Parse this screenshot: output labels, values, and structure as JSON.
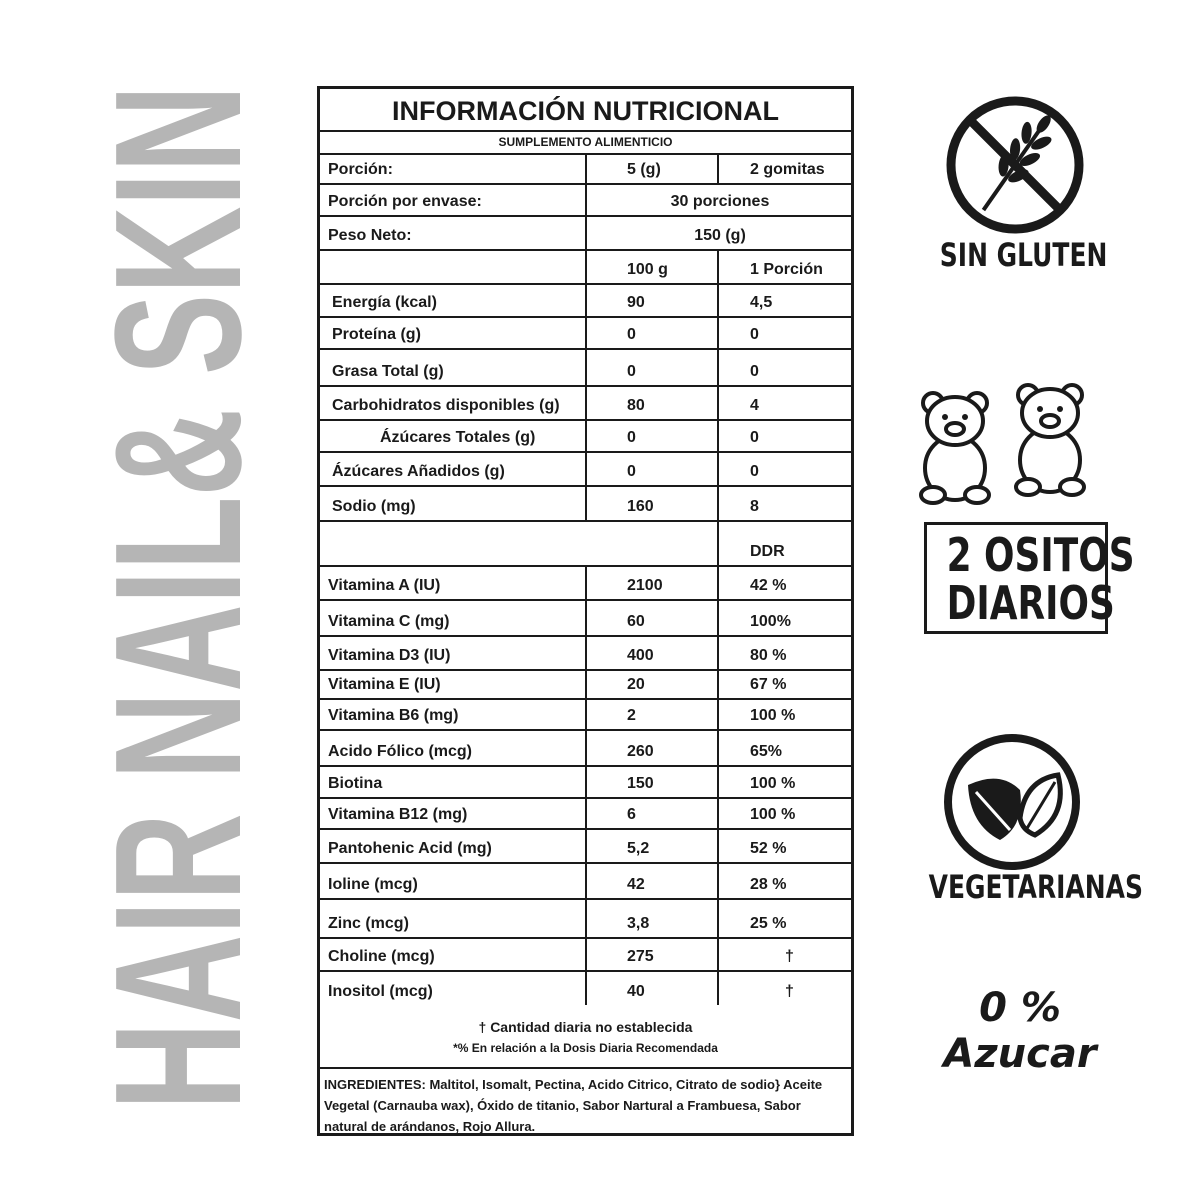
{
  "side_title": "HAIR NAIL& SKIN",
  "table": {
    "title": "INFORMACIÓN NUTRICIONAL",
    "subtitle": "SUMPLEMENTO ALIMENTICIO",
    "rows": [
      {
        "label": "Porción:",
        "v1": "5 (g)",
        "v2": "2 gomitas"
      },
      {
        "label": "Porción por envase:",
        "v1": "30 porciones",
        "v2": ""
      },
      {
        "label": "Peso Neto:",
        "v1": "150 (g)",
        "v2": ""
      },
      {
        "label": "",
        "v1": "100 g",
        "v2": "1 Porción"
      },
      {
        "label": "Energía (kcal)",
        "v1": "90",
        "v2": "4,5"
      },
      {
        "label": "Proteína (g)",
        "v1": "0",
        "v2": "0"
      },
      {
        "label": "Grasa Total (g)",
        "v1": "0",
        "v2": "0"
      },
      {
        "label": "Carbohidratos disponibles (g)",
        "v1": "80",
        "v2": "4"
      },
      {
        "label": "Ázúcares Totales (g)",
        "v1": "0",
        "v2": "0"
      },
      {
        "label": "Ázúcares Añadidos (g)",
        "v1": "0",
        "v2": "0"
      },
      {
        "label": "Sodio (mg)",
        "v1": "160",
        "v2": "8"
      },
      {
        "label": "",
        "v1": "",
        "v2": "DDR"
      },
      {
        "label": "Vitamina A (IU)",
        "v1": "2100",
        "v2": "42 %"
      },
      {
        "label": "Vitamina C (mg)",
        "v1": "60",
        "v2": "100%"
      },
      {
        "label": "Vitamina  D3 (IU)",
        "v1": "400",
        "v2": "80 %"
      },
      {
        "label": "Vitamina E (IU)",
        "v1": "20",
        "v2": "67 %"
      },
      {
        "label": "Vitamina B6 (mg)",
        "v1": "2",
        "v2": "100 %"
      },
      {
        "label": "Acido Fólico (mcg)",
        "v1": "260",
        "v2": "65%"
      },
      {
        "label": "Biotina",
        "v1": "150",
        "v2": "100 %"
      },
      {
        "label": "Vitamina B12 (mg)",
        "v1": "6",
        "v2": "100 %"
      },
      {
        "label": "Pantohenic Acid (mg)",
        "v1": "5,2",
        "v2": "52 %"
      },
      {
        "label": "Ioline (mcg)",
        "v1": "42",
        "v2": "28 %"
      },
      {
        "label": "Zinc (mcg)",
        "v1": "3,8",
        "v2": "25 %"
      },
      {
        "label": "Choline (mcg)",
        "v1": "275",
        "v2": "†"
      },
      {
        "label": "Inositol (mcg)",
        "v1": "40",
        "v2": "†"
      }
    ],
    "footnote_1": "† Cantidad diaria no establecida",
    "footnote_2": "*% En relación a la Dosis Diaria Recomendada",
    "ingredients": "INGREDIENTES: Maltitol, Isomalt, Pectina, Acido Citrico, Citrato de sodio} Aceite Vegetal (Carnauba  wax), Óxido de titanio, Sabor Nartural a Frambuesa, Sabor natural de arándanos, Rojo Allura."
  },
  "badges": {
    "gluten": {
      "icon": "no-wheat-icon",
      "label": "SIN GLUTEN"
    },
    "bears": {
      "icon": "gummy-bears-icon",
      "label_line1": "2 OSITOS",
      "label_line2": "DIARIOS"
    },
    "vegan": {
      "icon": "leaves-icon",
      "label": "VEGETARIANAS"
    },
    "sugar": {
      "label": "0 % Azucar"
    }
  },
  "colors": {
    "side_title": "#b5b5b5",
    "ink": "#1a1a1a"
  }
}
